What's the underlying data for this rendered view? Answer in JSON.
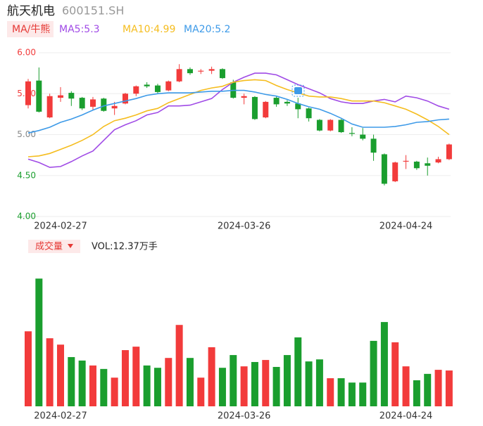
{
  "header": {
    "name": "航天机电",
    "code": "600151.SH"
  },
  "chart_data": [
    {
      "type": "candlestick",
      "legend_label": "MA/牛熊",
      "categories": [
        null,
        null,
        null,
        "2024-02-27",
        null,
        null,
        null,
        null,
        null,
        null,
        null,
        null,
        null,
        null,
        null,
        null,
        null,
        null,
        null,
        null,
        "2024-03-26",
        null,
        null,
        null,
        null,
        null,
        null,
        null,
        null,
        null,
        null,
        null,
        null,
        null,
        null,
        "2024-04-24",
        null,
        null,
        null,
        null
      ],
      "open": [
        5.36,
        5.66,
        5.21,
        5.45,
        5.51,
        5.45,
        5.34,
        5.44,
        5.32,
        5.38,
        5.5,
        5.61,
        5.6,
        5.54,
        5.65,
        5.8,
        5.77,
        5.78,
        5.8,
        5.64,
        5.45,
        5.46,
        5.21,
        5.45,
        5.4,
        5.38,
        5.32,
        5.18,
        5.05,
        5.18,
        5.02,
        5.0,
        4.95,
        4.76,
        4.43,
        4.67,
        4.67,
        4.65,
        4.66,
        4.7
      ],
      "high": [
        5.68,
        5.82,
        5.5,
        5.58,
        5.53,
        5.46,
        5.46,
        5.45,
        5.4,
        5.51,
        5.6,
        5.64,
        5.62,
        5.66,
        5.86,
        5.82,
        5.8,
        5.83,
        5.81,
        5.67,
        5.5,
        5.47,
        5.41,
        5.47,
        5.42,
        5.45,
        5.33,
        5.19,
        5.19,
        5.19,
        5.09,
        5.08,
        5.0,
        4.77,
        4.67,
        4.75,
        4.68,
        4.72,
        4.73,
        4.89
      ],
      "low": [
        5.32,
        5.27,
        5.2,
        5.4,
        5.35,
        5.3,
        5.3,
        5.28,
        5.24,
        5.37,
        5.47,
        5.57,
        5.5,
        5.53,
        5.64,
        5.73,
        5.74,
        5.74,
        5.68,
        5.44,
        5.37,
        5.18,
        5.2,
        5.34,
        5.35,
        5.2,
        5.16,
        5.04,
        5.04,
        5.02,
        4.98,
        4.93,
        4.68,
        4.38,
        4.42,
        4.58,
        4.57,
        4.5,
        4.65,
        4.69
      ],
      "close": [
        5.65,
        5.28,
        5.47,
        5.48,
        5.44,
        5.32,
        5.43,
        5.29,
        5.35,
        5.5,
        5.59,
        5.59,
        5.52,
        5.65,
        5.8,
        5.75,
        5.78,
        5.8,
        5.69,
        5.45,
        5.47,
        5.19,
        5.4,
        5.37,
        5.38,
        5.31,
        5.2,
        5.05,
        5.18,
        5.03,
        5.01,
        4.95,
        4.78,
        4.4,
        4.66,
        4.68,
        4.59,
        4.62,
        4.7,
        4.88
      ],
      "up_color": "#f23b3b",
      "down_color": "#1a9e2e",
      "series": [
        {
          "name": "MA5:5.3",
          "color": "#a04be6",
          "values": [
            4.7,
            4.66,
            4.6,
            4.61,
            4.67,
            4.74,
            4.8,
            4.93,
            5.06,
            5.12,
            5.17,
            5.24,
            5.27,
            5.35,
            5.35,
            5.36,
            5.4,
            5.44,
            5.55,
            5.64,
            5.7,
            5.75,
            5.75,
            5.73,
            5.67,
            5.61,
            5.56,
            5.51,
            5.44,
            5.4,
            5.38,
            5.38,
            5.41,
            5.43,
            5.4,
            5.47,
            5.45,
            5.41,
            5.35,
            5.31
          ]
        },
        {
          "name": "MA10:4.99",
          "color": "#f5bd1f",
          "values": [
            4.73,
            4.74,
            4.77,
            4.82,
            4.87,
            4.93,
            5.0,
            5.1,
            5.17,
            5.2,
            5.24,
            5.29,
            5.32,
            5.39,
            5.44,
            5.49,
            5.54,
            5.57,
            5.59,
            5.64,
            5.66,
            5.67,
            5.66,
            5.6,
            5.55,
            5.51,
            5.47,
            5.46,
            5.46,
            5.44,
            5.41,
            5.41,
            5.41,
            5.39,
            5.35,
            5.31,
            5.25,
            5.18,
            5.1,
            5.0
          ]
        },
        {
          "name": "MA20:5.2",
          "color": "#3d9ae8",
          "values": [
            5.02,
            5.05,
            5.09,
            5.15,
            5.19,
            5.24,
            5.3,
            5.35,
            5.38,
            5.41,
            5.44,
            5.48,
            5.5,
            5.51,
            5.51,
            5.51,
            5.52,
            5.53,
            5.53,
            5.54,
            5.54,
            5.52,
            5.49,
            5.47,
            5.43,
            5.38,
            5.34,
            5.31,
            5.26,
            5.2,
            5.13,
            5.09,
            5.09,
            5.09,
            5.1,
            5.12,
            5.15,
            5.16,
            5.18,
            5.19
          ]
        }
      ],
      "ylim": [
        4,
        6
      ],
      "yticks": [
        {
          "value": 4,
          "label": "4.00"
        },
        {
          "value": 4.5,
          "label": "4.50"
        },
        {
          "value": 5,
          "label": "5.00"
        },
        {
          "value": 5.5,
          "label": "5.50"
        },
        {
          "value": 6,
          "label": "6.00"
        }
      ],
      "ytick_colors": [
        "#1a9e2e",
        "#1a9e2e",
        "#888888",
        "#f23b3b",
        "#f23b3b"
      ],
      "grid": true
    },
    {
      "type": "bar",
      "legend_label": "成交量",
      "categories": [
        null,
        null,
        null,
        "2024-02-27",
        null,
        null,
        null,
        null,
        null,
        null,
        null,
        null,
        null,
        null,
        null,
        null,
        null,
        null,
        null,
        null,
        "2024-03-26",
        null,
        null,
        null,
        null,
        null,
        null,
        null,
        null,
        null,
        null,
        null,
        null,
        null,
        null,
        "2024-04-24",
        null,
        null,
        null,
        null
      ],
      "series": [
        {
          "name": "VOL:12.37万手",
          "values": [
            25.9,
            44.1,
            23.5,
            21.3,
            17.0,
            15.8,
            14.1,
            12.9,
            9.9,
            19.4,
            20.6,
            14.1,
            13.3,
            16.7,
            28.1,
            16.7,
            9.9,
            20.4,
            13.3,
            17.7,
            13.8,
            15.3,
            16.0,
            13.6,
            17.7,
            23.8,
            15.5,
            16.2,
            9.7,
            9.7,
            8.2,
            8.2,
            22.6,
            29.1,
            22.1,
            13.8,
            9.0,
            11.2,
            12.6,
            12.37
          ]
        }
      ],
      "ylim": [
        0,
        50
      ]
    }
  ]
}
